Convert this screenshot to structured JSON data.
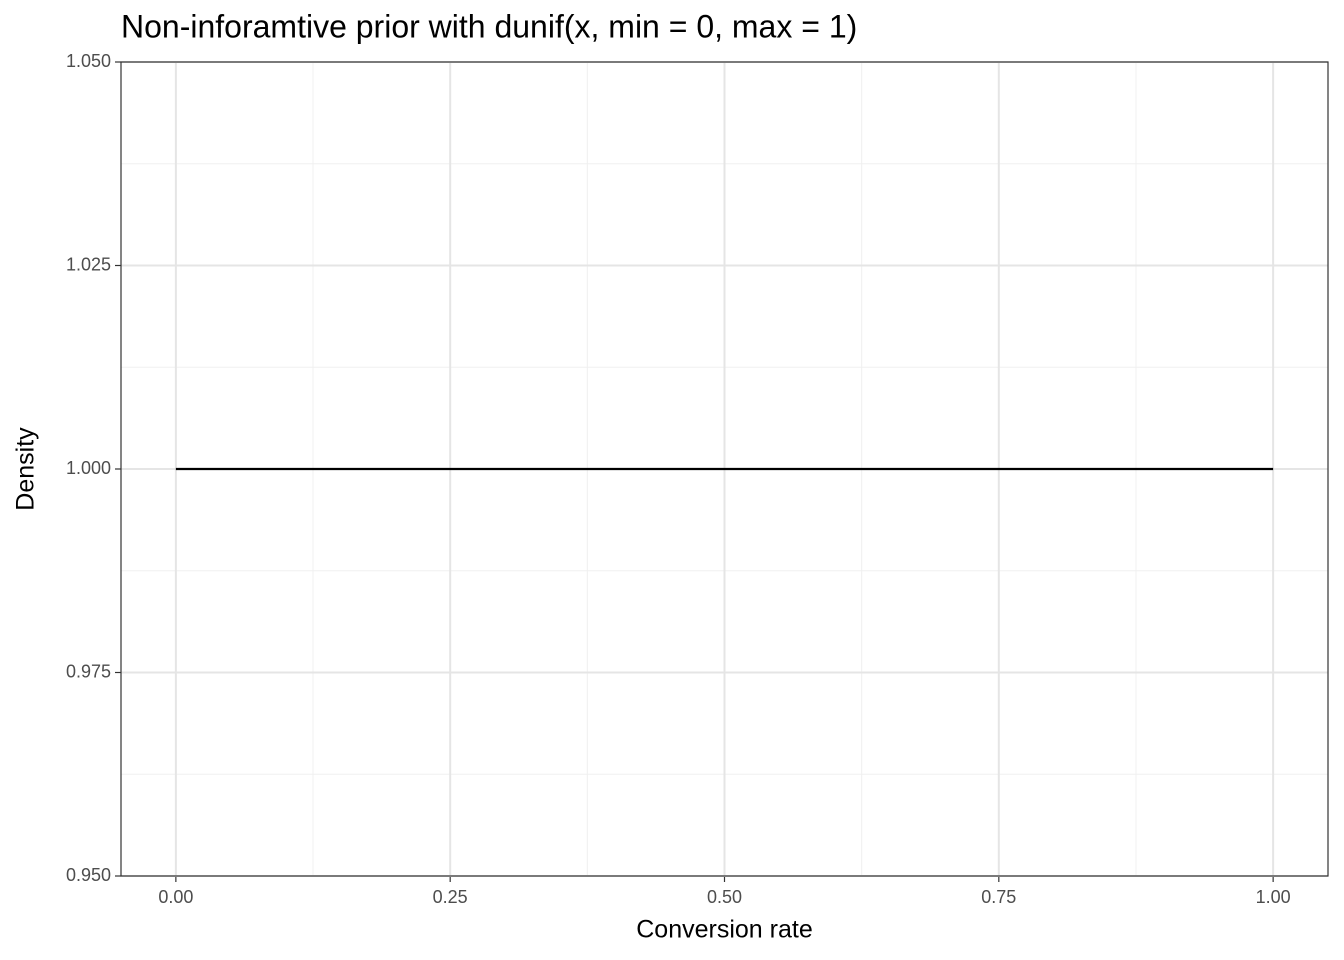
{
  "chart_data": {
    "type": "line",
    "title": "Non-inforamtive prior with dunif(x, min = 0, max = 1)",
    "x_label": "Conversion rate",
    "y_label": "Density",
    "x": [
      0,
      1
    ],
    "values": [
      1,
      1
    ],
    "color": "#000000",
    "xlim": [
      -0.05,
      1.05
    ],
    "ylim": [
      0.95,
      1.05
    ],
    "xticks": [
      {
        "value": 0,
        "label": "0.00"
      },
      {
        "value": 0.25,
        "label": "0.25"
      },
      {
        "value": 0.5,
        "label": "0.50"
      },
      {
        "value": 0.75,
        "label": "0.75"
      },
      {
        "value": 1,
        "label": "1.00"
      }
    ],
    "yticks": [
      {
        "value": 0.95,
        "label": "0.950"
      },
      {
        "value": 0.975,
        "label": "0.975"
      },
      {
        "value": 1,
        "label": "1.000"
      },
      {
        "value": 1.025,
        "label": "1.025"
      },
      {
        "value": 1.05,
        "label": "1.050"
      }
    ],
    "x_minor_ticks": [
      0.125,
      0.375,
      0.625,
      0.875
    ],
    "y_minor_ticks": [
      0.9625,
      0.9875,
      1.0125,
      1.0375
    ],
    "grid": true
  }
}
